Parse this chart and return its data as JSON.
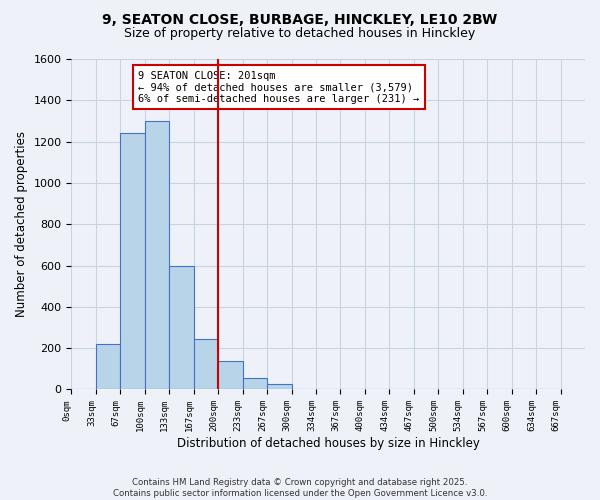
{
  "title_line1": "9, SEATON CLOSE, BURBAGE, HINCKLEY, LE10 2BW",
  "title_line2": "Size of property relative to detached houses in Hinckley",
  "xlabel": "Distribution of detached houses by size in Hinckley",
  "ylabel": "Number of detached properties",
  "bin_labels": [
    "0sqm",
    "33sqm",
    "67sqm",
    "100sqm",
    "133sqm",
    "167sqm",
    "200sqm",
    "233sqm",
    "267sqm",
    "300sqm",
    "334sqm",
    "367sqm",
    "400sqm",
    "434sqm",
    "467sqm",
    "500sqm",
    "534sqm",
    "567sqm",
    "600sqm",
    "634sqm",
    "667sqm"
  ],
  "bar_values": [
    0,
    220,
    1240,
    1300,
    600,
    245,
    140,
    55,
    25,
    0,
    0,
    0,
    0,
    0,
    0,
    0,
    0,
    0,
    0,
    0
  ],
  "bar_color": "#b8d4e8",
  "bar_edgecolor": "#4472c4",
  "ylim": [
    0,
    1600
  ],
  "yticks": [
    0,
    200,
    400,
    600,
    800,
    1000,
    1200,
    1400,
    1600
  ],
  "vline_x": 6,
  "vline_color": "#cc0000",
  "annotation_text": "9 SEATON CLOSE: 201sqm\n← 94% of detached houses are smaller (3,579)\n6% of semi-detached houses are larger (231) →",
  "bg_color": "#eef2f8",
  "grid_color": "#c8d4e4",
  "footer_line1": "Contains HM Land Registry data © Crown copyright and database right 2025.",
  "footer_line2": "Contains public sector information licensed under the Open Government Licence v3.0."
}
